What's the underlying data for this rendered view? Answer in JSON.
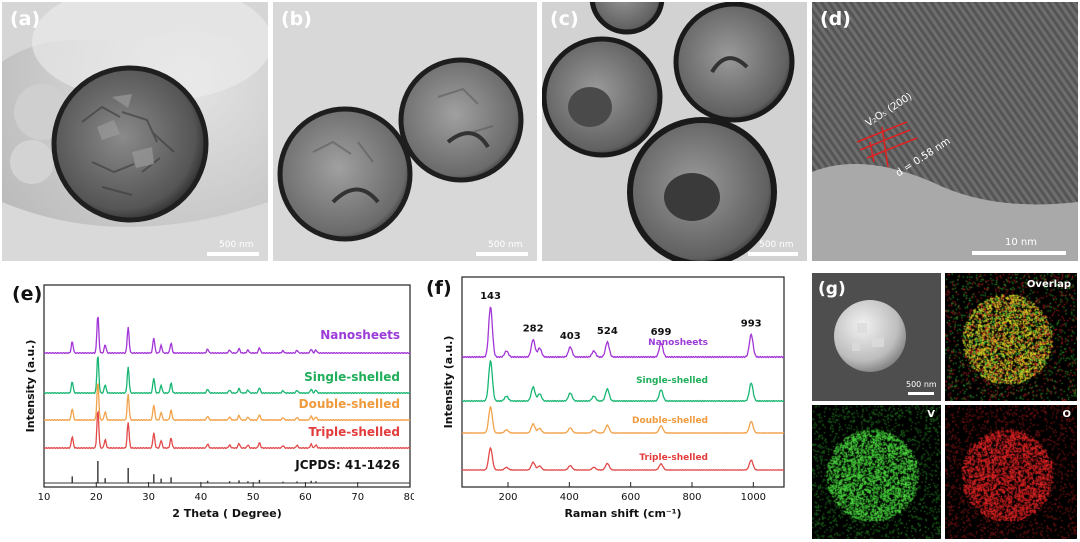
{
  "panels": {
    "a": {
      "label": "(a)",
      "scale": "500 nm"
    },
    "b": {
      "label": "(b)",
      "scale": "500 nm"
    },
    "c": {
      "label": "(c)",
      "scale": "500 nm"
    },
    "d": {
      "label": "(d)",
      "scale": "10 nm",
      "plane": "V₂O₅ (200)",
      "spacing": "d = 0.58 nm"
    },
    "e": {
      "label": "(e)"
    },
    "f": {
      "label": "(f)"
    },
    "g": {
      "label": "(g)",
      "scale": "500 nm",
      "overlap": "Overlap",
      "v": "V",
      "o": "O"
    }
  },
  "chart_data": [
    {
      "type": "line",
      "panel": "e",
      "xlabel": "2 Theta ( Degree)",
      "ylabel": "Intensity (a.u.)",
      "xlim": [
        10,
        80
      ],
      "xticks": [
        10,
        20,
        30,
        40,
        50,
        60,
        70,
        80
      ],
      "peaks": [
        15.4,
        20.3,
        21.7,
        26.1,
        31.0,
        32.4,
        34.3,
        41.3,
        45.5,
        47.3,
        49.0,
        51.2,
        55.7,
        58.4,
        61.1,
        62.0
      ],
      "peak_heights": [
        0.3,
        1.0,
        0.22,
        0.68,
        0.4,
        0.2,
        0.26,
        0.1,
        0.08,
        0.12,
        0.08,
        0.14,
        0.06,
        0.07,
        0.1,
        0.08
      ],
      "series": [
        {
          "name": "Nanosheets",
          "color": "#a336d6",
          "labelColor": "#9b3bd8"
        },
        {
          "name": "Single-shelled",
          "color": "#19b673",
          "labelColor": "#1fae5a"
        },
        {
          "name": "Double-shelled",
          "color": "#f2a24a",
          "labelColor": "#ef9a3d"
        },
        {
          "name": "Triple-shelled",
          "color": "#e24a4a",
          "labelColor": "#e33c3c"
        },
        {
          "name": "JCPDS: 41-1426",
          "color": "#333333",
          "labelColor": "#111111"
        }
      ]
    },
    {
      "type": "line",
      "panel": "f",
      "xlabel": "Raman shift (cm⁻¹)",
      "ylabel": "Intensity (a.u.)",
      "xlim": [
        50,
        1100
      ],
      "xticks": [
        200,
        400,
        600,
        800,
        1000
      ],
      "peaks": [
        143,
        195,
        282,
        303,
        403,
        480,
        524,
        699,
        993
      ],
      "peak_heights": [
        1.0,
        0.12,
        0.35,
        0.18,
        0.2,
        0.12,
        0.3,
        0.28,
        0.45
      ],
      "annotations": [
        "143",
        "282",
        "403",
        "524",
        "699",
        "993"
      ],
      "annotation_x": [
        143,
        282,
        403,
        524,
        699,
        993
      ],
      "series": [
        {
          "name": "Nanosheets",
          "color": "#a336d6",
          "labelColor": "#9b3bd8"
        },
        {
          "name": "Single-shelled",
          "color": "#19b673",
          "labelColor": "#1fae5a"
        },
        {
          "name": "Double-shelled",
          "color": "#f2a24a",
          "labelColor": "#ef9a3d"
        },
        {
          "name": "Triple-shelled",
          "color": "#e24a4a",
          "labelColor": "#e33c3c"
        }
      ]
    }
  ]
}
